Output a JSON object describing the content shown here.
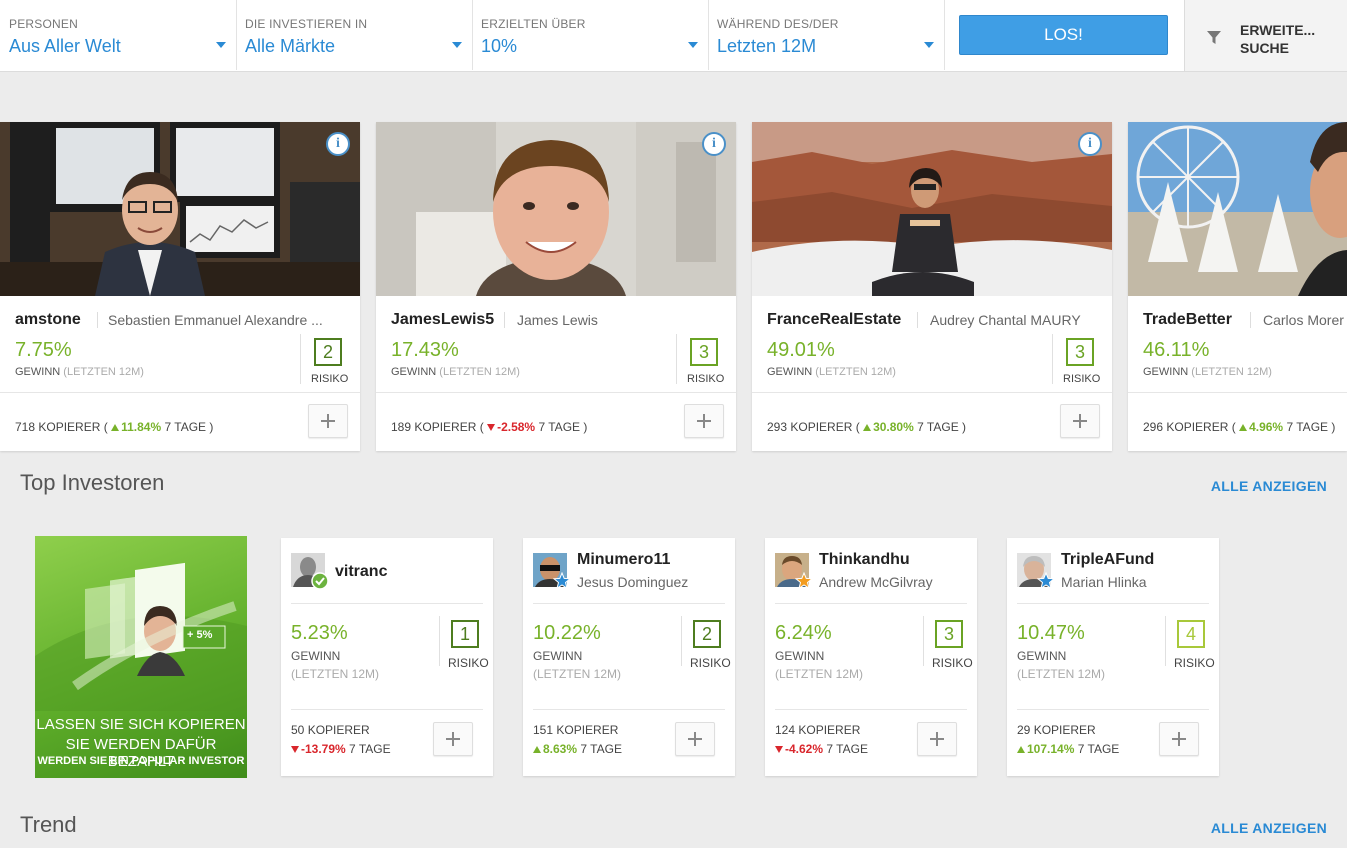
{
  "filters": [
    {
      "label": "PERSONEN",
      "value": "Aus Aller Welt"
    },
    {
      "label": "DIE INVESTIEREN IN",
      "value": "Alle Märkte"
    },
    {
      "label": "ERZIELTEN ÜBER",
      "value": "10%"
    },
    {
      "label": "WÄHREND DES/DER",
      "value": "Letzten 12M"
    }
  ],
  "go_button": "LOS!",
  "advanced_search": {
    "line1": "ERWEITE...",
    "line2": "SUCHE"
  },
  "popular": [
    {
      "username": "amstone",
      "fullname": "Sebastien Emmanuel Alexandre ...",
      "gain": "7.75%",
      "gain_label": "GEWINN",
      "gain_period": "(LETZTEN 12M)",
      "risk": "2",
      "risk_label": "RISIKO",
      "copiers": "718",
      "copiers_label": "KOPIERER (",
      "change": "11.84%",
      "direction": "up",
      "period": "7 TAGE )"
    },
    {
      "username": "JamesLewis5",
      "fullname": "James Lewis",
      "gain": "17.43%",
      "gain_label": "GEWINN",
      "gain_period": "(LETZTEN 12M)",
      "risk": "3",
      "risk_label": "RISIKO",
      "copiers": "189",
      "copiers_label": "KOPIERER (",
      "change": "-2.58%",
      "direction": "down",
      "period": "7 TAGE )"
    },
    {
      "username": "FranceRealEstate",
      "fullname": "Audrey Chantal MAURY",
      "gain": "49.01%",
      "gain_label": "GEWINN",
      "gain_period": "(LETZTEN 12M)",
      "risk": "3",
      "risk_label": "RISIKO",
      "copiers": "293",
      "copiers_label": "KOPIERER (",
      "change": "30.80%",
      "direction": "up",
      "period": "7 TAGE )"
    },
    {
      "username": "TradeBetter",
      "fullname": "Carlos Morer",
      "gain": "46.11%",
      "gain_label": "GEWINN",
      "gain_period": "(LETZTEN 12M)",
      "risk": "",
      "risk_label": "",
      "copiers": "296",
      "copiers_label": "KOPIERER (",
      "change": "4.96%",
      "direction": "up",
      "period": "7 TAGE )"
    }
  ],
  "top_section": {
    "title": "Top Investoren",
    "show_all": "ALLE ANZEIGEN"
  },
  "promo": {
    "line1": "LASSEN SIE SICH KOPIEREN",
    "line2": "SIE WERDEN DAFÜR BEZAHLT",
    "line3": "WERDEN SIE EIN POPULAR INVESTOR",
    "badge": "+ 5%"
  },
  "investors": [
    {
      "username": "vitranc",
      "fullname": "",
      "badge": "green-check",
      "gain": "5.23%",
      "gain_label": "GEWINN",
      "gain_period": "(LETZTEN 12M)",
      "risk": "1",
      "risk_label": "RISIKO",
      "copiers": "50",
      "copiers_label": "KOPIERER",
      "change": "-13.79%",
      "direction": "down",
      "period": "7 TAGE"
    },
    {
      "username": "Minumero11",
      "fullname": "Jesus Dominguez",
      "badge": "blue-star",
      "gain": "10.22%",
      "gain_label": "GEWINN",
      "gain_period": "(LETZTEN 12M)",
      "risk": "2",
      "risk_label": "RISIKO",
      "copiers": "151",
      "copiers_label": "KOPIERER",
      "change": "8.63%",
      "direction": "up",
      "period": "7 TAGE"
    },
    {
      "username": "Thinkandhu",
      "fullname": "Andrew McGilvray",
      "badge": "orange-star",
      "gain": "6.24%",
      "gain_label": "GEWINN",
      "gain_period": "(LETZTEN 12M)",
      "risk": "3",
      "risk_label": "RISIKO",
      "copiers": "124",
      "copiers_label": "KOPIERER",
      "change": "-4.62%",
      "direction": "down",
      "period": "7 TAGE"
    },
    {
      "username": "TripleAFund",
      "fullname": "Marian Hlinka",
      "badge": "blue-star",
      "gain": "10.47%",
      "gain_label": "GEWINN",
      "gain_period": "(LETZTEN 12M)",
      "risk": "4",
      "risk_label": "RISIKO",
      "copiers": "29",
      "copiers_label": "KOPIERER",
      "change": "107.14%",
      "direction": "up",
      "period": "7 TAGE"
    }
  ],
  "trend_section": {
    "title": "Trend",
    "show_all": "ALLE ANZEIGEN"
  },
  "colors": {
    "accent": "#2a8ad4",
    "button": "#3f9ee5",
    "positive": "#78b22a",
    "negative": "#d9262c",
    "risk_dark": "#4e7d1f"
  }
}
